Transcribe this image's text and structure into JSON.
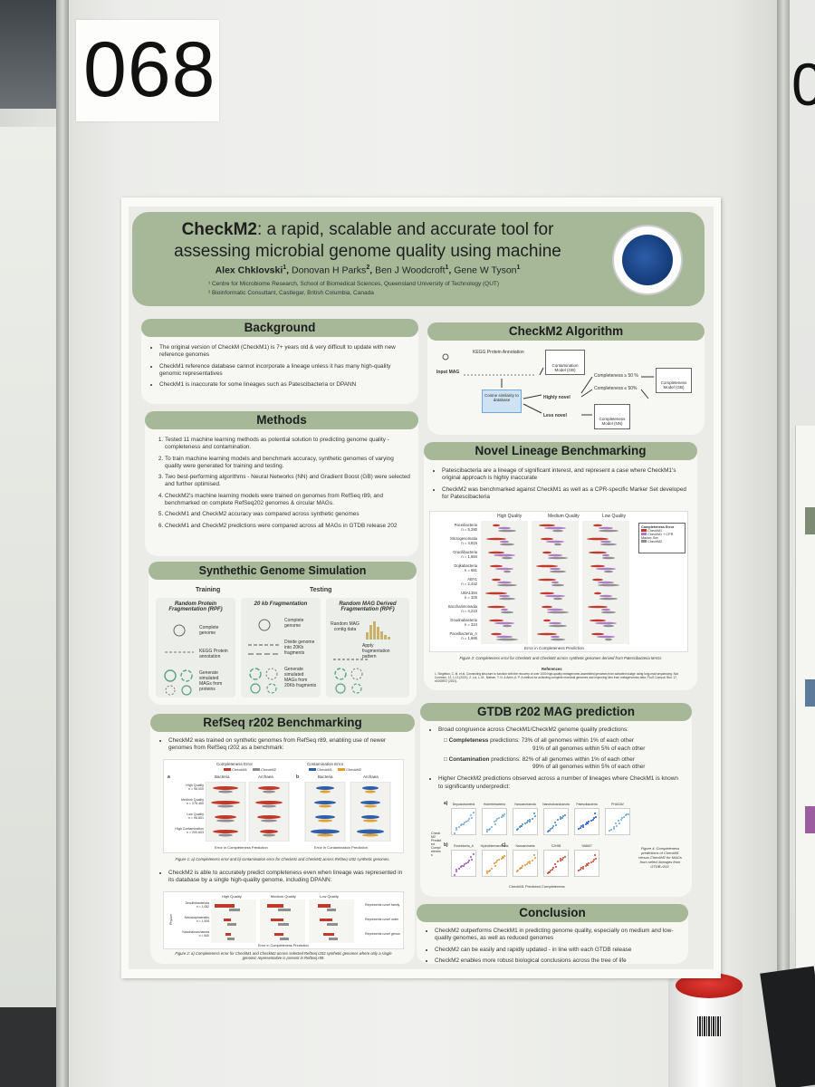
{
  "booth_number": "068",
  "neighbor_booth_number": "0",
  "poster": {
    "title_bold": "CheckM2",
    "title_rest": ": a rapid, scalable and accurate tool for",
    "title_line2": "assessing microbial genome quality using machine",
    "authors": [
      "Alex Chklovski",
      "Donovan H Parks",
      "Ben J Woodcroft",
      "Gene W Tyson"
    ],
    "author_superscripts": [
      "1",
      "2",
      "1",
      "1"
    ],
    "affiliation_1": "¹ Centre for Microbiome Research, School of Biomedical Sciences, Queensland University of Technology (QUT)",
    "affiliation_2": "² Bioinformatic Consultant, Castlegar, British Columbia, Canada",
    "logo_text": "CENTRE FOR MICROBIOME RESEARCH",
    "background": {
      "heading": "Background",
      "items": [
        "The original version of CheckM (CheckM1) is 7+ years old & very difficult to update with new reference genomes",
        "CheckM1 reference database cannot incorporate a lineage unless it has many high-quality genomic representatives",
        "CheckM1 is inaccurate for some lineages such as Patescibacteria or DPANN"
      ]
    },
    "methods": {
      "heading": "Methods",
      "items": [
        "Tested 11 machine learning methods as potential solution to predicting genome quality - completeness and contamination.",
        "To train machine learning models and benchmark accuracy, synthetic genomes of varying quality were generated for training and testing.",
        "Two best-performing algorithms - Neural Networks (NN) and Gradient Boost (GB) were selected and further optimised.",
        "CheckM2's machine learning models were trained on genomes from RefSeq r89, and benchmarked on complete RefSeq202 genomes & circular MAGs.",
        "CheckM1 and CheckM2 accuracy was compared across synthetic genomes",
        "CheckM1 and CheckM2 predictions were compared across all MAGs in GTDB release 202"
      ]
    },
    "synthetic": {
      "heading": "Synthethic Genome Simulation",
      "training_label": "Training",
      "testing_label": "Testing",
      "col1_title": "Random Protein Fragmentation (RPF)",
      "col2_title": "20 kb Fragmentation",
      "col3_title": "Random MAG Derived Fragmentation (RPF)",
      "col1_steps": [
        "Complete genome",
        "KEGG Protein annotation",
        "Generate simulated MAGs from proteins"
      ],
      "col2_steps": [
        "Complete genome",
        "Divide genome into 20Kb fragments",
        "Generate simulated MAGs from 20Kb fragments"
      ],
      "col3_steps": [
        "Random MAG contig data",
        "Apply fragmentation pattern"
      ]
    },
    "refseq": {
      "heading": "RefSeq r202 Benchmarking",
      "item1": "CheckM2 was trained on synthetic genomes from RefSeq r89, enabling use of newer genomes from RefSeq r202 as a benchmark:",
      "legend_completeness": "Completeness Error",
      "legend_contamination": "Contamination Error",
      "legend_checkm1": "CheckM1",
      "legend_checkm2": "CheckM2",
      "panel_a": "a",
      "panel_b": "b",
      "bacteria": "Bacteria",
      "archaea": "Archaea",
      "rows": [
        "High Quality",
        "Medium Quality",
        "Low Quality",
        "High Contamination"
      ],
      "row_counts": [
        "n = 96,000",
        "n = 276,460",
        "n = 96,801",
        "n = 200,603"
      ],
      "xlabel_a": "Error in Completeness Prediction",
      "xlabel_b": "Error in Contamination Prediction",
      "fig1_caption": "Figure 1: a) Completeness error and b) contamination error for CheckM1 and CheckM2 across RefSeq r202 synthetic genomes.",
      "item2": "CheckM2 is able to accurately predict completeness even when lineage was represented in its database by a single high-quality genome, including DPANN:",
      "fig2_cols": [
        "High Quality",
        "Medium Quality",
        "Low Quality"
      ],
      "fig2_rows": [
        "Desulfobacteriota",
        "Nitrososphaerales",
        "Nanohaloarchaeota"
      ],
      "fig2_row_counts": [
        "n = 1,082",
        "n = 1,506",
        "n = 840"
      ],
      "fig2_notes": [
        "Represents novel family",
        "Represents novel order",
        "Represents novel genus"
      ],
      "fig2_ylabel": "Phylum",
      "fig2_xlabel": "Error in Completeness Prediction",
      "fig2_caption": "Figure 2: a) Completeness error for CheckM1 and CheckM2 across selected RefSeq r202 synthetic genomes where only a single genomic representative is present in RefSeq r89."
    },
    "algorithm": {
      "heading": "CheckM2 Algorithm",
      "input": "Input MAG",
      "kegg": "KEGG Protein Annotation",
      "contam_model": "Contamination Model (GB)",
      "cosine": "Cosine similarity to database",
      "highly_novel": "Highly novel",
      "less_novel": "Less novel",
      "comp_ge": "Completeness ≥ 50 %",
      "comp_le": "Completeness ≤ 50%",
      "comp_model_gb": "Completeness Model (GB)",
      "comp_model_nn": "Completeness Model (NN)"
    },
    "novel": {
      "heading": "Novel Lineage Benchmarking",
      "items": [
        "Patescibacteria are a lineage of significant interest, and represent a case where CheckM1's original approach is highly inaccurate",
        "CheckM2 was benchmarked against CheckM1 as well as a CPR-specific Marker Set developed for Patescibacteria"
      ],
      "cols": [
        "High Quality",
        "Medium Quality",
        "Low Quality"
      ],
      "rows": [
        "Paceibacteria",
        "Microgenomatia",
        "Gracilibacteria",
        "Dojkabacteria",
        "ABY1",
        "UBA1384",
        "Saccharimonadia",
        "Doudnabacteria",
        "Paceibacteria_A"
      ],
      "row_counts": [
        "n = 5,280",
        "n = 4,815",
        "n = 1,684",
        "n = 661",
        "n = 2,442",
        "n = 325",
        "n = 4,210",
        "n = 324",
        "n = 1,666"
      ],
      "legend_title": "Completeness Error",
      "legend_items": [
        "CheckM1",
        "CheckM1 + CPR Marker Set",
        "CheckM2"
      ],
      "xlabel": "Error in Completeness Prediction",
      "fig3_caption": "Figure 3: Completeness error for CheckM1 and CheckM2 across synthetic genomes derived from Patescibacteria MAGs",
      "refs_title": "References",
      "refs_text": "1. Singleton, C. M. et al. Connecting structure to function with the recovery of over 1000 high-quality metagenome-assembled genomes from activated sludge using long-read sequencing. Nat. Commun. 12, 1-13 (2021). 2. Lui, L. M., Nielsen, T. N. & Arkin, A. P. A method for achieving complete microbial genomes and improving bins from metagenomics data. PLoS Comput. Biol. 17, e1008972 (2021)."
    },
    "gtdb": {
      "heading": "GTDB r202 MAG prediction",
      "item1": "Broad congruence across CheckM1/CheckM2 genome quality predictions:",
      "completeness_label": "Completeness",
      "completeness_text": "predictions: 73% of all genomes within 1% of each other",
      "completeness_text2": "91% of all genomes within 5% of each other",
      "contamination_label": "Contamination",
      "contamination_text": "predictions: 82% of all genomes within 1% of each other",
      "contamination_text2": "99% of all genomes within 5% of each other",
      "item2": "Higher CheckM2 predictions observed across a number of lineages where CheckM1 is known to significantly underpredict:",
      "panel_labels": [
        "a)",
        "b)",
        "c)"
      ],
      "row1": [
        "Deposiobacteria",
        "Hubertebacteria",
        "Nanoarchaeota",
        "Nanohaloarchaeota",
        "Patescibacteria",
        "PHAGAV"
      ],
      "row2": [
        "Poseidoniia_A",
        "Hydrothermarchaeia",
        "Nanoarchaeia",
        "C2H58",
        "YA6607"
      ],
      "ylabel": "CheckM2 Predicted Completeness",
      "xlabel": "CheckM1 Predicted Completeness",
      "fig4_caption": "Figure 4: Completeness predictions of CheckM1 versus CheckM2 for MAGs from select lineages from GTDB r202.",
      "row1_colors": [
        "#6fa8dc",
        "#6fa8dc",
        "#3d85c6",
        "#3d85c6",
        "#1155cc",
        "#6fa8dc"
      ],
      "row2_colors": [
        "#a64dc4",
        "#e69138",
        "#e69138",
        "#cc4125",
        "#cc4125"
      ]
    },
    "conclusion": {
      "heading": "Conclusion",
      "items": [
        "CheckM2 outperforms CheckM1 in predicting genome quality, especially on medium and low-quality genomes, as well as reduced genomes",
        "CheckM2 can be easily and rapidly updated - in line with each GTDB release",
        "CheckM2 enables more robust biological conclusions across the tree of life"
      ]
    },
    "colors": {
      "header_green": "#a7b899",
      "checkm1_red": "#c0392b",
      "checkm2_grey": "#8f8f8f",
      "cpr_purple": "#b07cc6"
    }
  }
}
